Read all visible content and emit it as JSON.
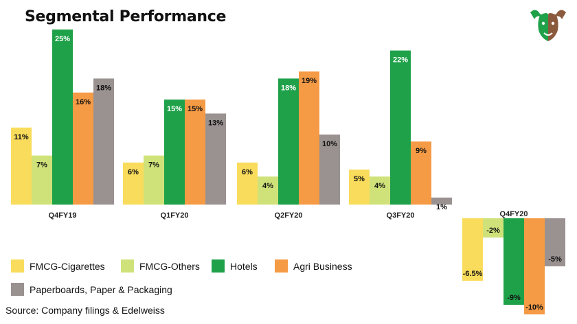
{
  "title": "Segmental Performance",
  "source": "Source: Company filings & Edelweiss",
  "logo_icon": "bull-bear-icon",
  "colors": {
    "FMCG-Cigarettes": "#f9dc5c",
    "FMCG-Others": "#cfe27a",
    "Hotels": "#1fa14a",
    "Agri Business": "#f59a45",
    "Paperboards, Paper & Packaging": "#9a9191"
  },
  "legend": [
    {
      "label": "FMCG-Cigarettes",
      "color": "#f9dc5c"
    },
    {
      "label": "FMCG-Others",
      "color": "#cfe27a"
    },
    {
      "label": "Hotels",
      "color": "#1fa14a"
    },
    {
      "label": "Agri Business",
      "color": "#f59a45"
    },
    {
      "label": "Paperboards, Paper & Packaging",
      "color": "#9a9191"
    }
  ],
  "chart_data": {
    "type": "bar",
    "title": "Segmental Performance",
    "categories": [
      "Q4FY19",
      "Q1FY20",
      "Q2FY20",
      "Q3FY20",
      "Q4FY20"
    ],
    "series": [
      {
        "name": "FMCG-Cigarettes",
        "values": [
          11,
          6,
          6,
          5,
          -6.5
        ],
        "labels": [
          "11%",
          "6%",
          "6%",
          "5%",
          "-6.5%"
        ]
      },
      {
        "name": "FMCG-Others",
        "values": [
          7,
          7,
          4,
          4,
          -2
        ],
        "labels": [
          "7%",
          "7%",
          "4%",
          "4%",
          "-2%"
        ]
      },
      {
        "name": "Hotels",
        "values": [
          25,
          15,
          18,
          22,
          -9
        ],
        "labels": [
          "25%",
          "15%",
          "18%",
          "22%",
          "-9%"
        ]
      },
      {
        "name": "Agri Business",
        "values": [
          16,
          15,
          19,
          9,
          -10
        ],
        "labels": [
          "16%",
          "15%",
          "19%",
          "9%",
          "-10%"
        ]
      },
      {
        "name": "Paperboards, Paper & Packaging",
        "values": [
          18,
          13,
          10,
          1,
          -5
        ],
        "labels": [
          "18%",
          "13%",
          "10%",
          "1%",
          "-5%"
        ]
      }
    ],
    "legend_position": "bottom-left",
    "grid": false
  }
}
